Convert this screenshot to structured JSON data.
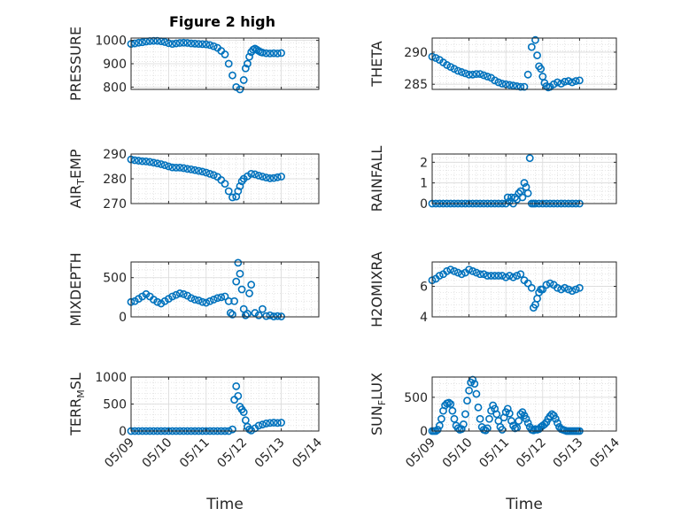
{
  "figure": {
    "title": "Figure 2 high"
  },
  "colors": {
    "marker": "#0072BD",
    "axis": "#262626",
    "grid": "#d9d9d9"
  },
  "chart_data": [
    {
      "type": "scatter",
      "ylabel": "PRESSURE",
      "xlabel": "",
      "ylim": [
        790,
        1010
      ],
      "yticks": [
        800,
        900,
        1000
      ],
      "xlim": [
        0,
        5
      ],
      "xticks": [],
      "grid": true,
      "x": [
        0.0,
        0.1,
        0.2,
        0.3,
        0.4,
        0.5,
        0.6,
        0.7,
        0.8,
        0.9,
        1.0,
        1.1,
        1.2,
        1.3,
        1.4,
        1.5,
        1.6,
        1.7,
        1.8,
        1.9,
        2.0,
        2.1,
        2.2,
        2.3,
        2.4,
        2.5,
        2.6,
        2.7,
        2.8,
        2.9,
        3.0,
        3.05,
        3.1,
        3.15,
        3.2,
        3.25,
        3.3,
        3.35,
        3.4,
        3.45,
        3.5,
        3.6,
        3.7,
        3.8,
        3.9,
        4.0
      ],
      "y": [
        985,
        987,
        990,
        992,
        995,
        997,
        998,
        998,
        996,
        993,
        988,
        985,
        987,
        989,
        990,
        989,
        987,
        986,
        985,
        984,
        983,
        980,
        975,
        968,
        955,
        940,
        900,
        850,
        800,
        790,
        830,
        880,
        900,
        930,
        950,
        960,
        965,
        960,
        955,
        950,
        948,
        945,
        944,
        945,
        944,
        946
      ]
    },
    {
      "type": "scatter",
      "ylabel": "THETA",
      "xlabel": "",
      "ylim": [
        284.2,
        292.2
      ],
      "yticks": [
        285,
        290
      ],
      "xlim": [
        0,
        5
      ],
      "xticks": [],
      "grid": true,
      "x": [
        0.0,
        0.1,
        0.2,
        0.3,
        0.4,
        0.5,
        0.6,
        0.7,
        0.8,
        0.9,
        1.0,
        1.1,
        1.2,
        1.3,
        1.4,
        1.5,
        1.6,
        1.7,
        1.8,
        1.9,
        2.0,
        2.1,
        2.2,
        2.3,
        2.4,
        2.5,
        2.6,
        2.7,
        2.8,
        2.85,
        2.9,
        2.95,
        3.0,
        3.05,
        3.1,
        3.15,
        3.2,
        3.3,
        3.4,
        3.5,
        3.6,
        3.7,
        3.8,
        3.9,
        4.0
      ],
      "y": [
        289.3,
        289.1,
        288.8,
        288.4,
        288.0,
        287.7,
        287.4,
        287.1,
        286.9,
        286.7,
        286.5,
        286.5,
        286.6,
        286.6,
        286.4,
        286.2,
        286.0,
        285.6,
        285.3,
        285.1,
        285.0,
        284.9,
        284.8,
        284.7,
        284.6,
        284.6,
        286.5,
        290.8,
        291.9,
        289.5,
        287.8,
        287.4,
        286.2,
        285.2,
        284.7,
        284.5,
        284.6,
        285.0,
        285.3,
        285.1,
        285.4,
        285.5,
        285.3,
        285.5,
        285.6
      ]
    },
    {
      "type": "scatter",
      "ylabel": "AIR_TEMP",
      "xlabel": "",
      "ylim": [
        270,
        290
      ],
      "yticks": [
        270,
        280,
        290
      ],
      "xlim": [
        0,
        5
      ],
      "xticks": [],
      "grid": true,
      "x": [
        0.0,
        0.1,
        0.2,
        0.3,
        0.4,
        0.5,
        0.6,
        0.7,
        0.8,
        0.9,
        1.0,
        1.1,
        1.2,
        1.3,
        1.4,
        1.5,
        1.6,
        1.7,
        1.8,
        1.9,
        2.0,
        2.1,
        2.2,
        2.3,
        2.4,
        2.5,
        2.6,
        2.7,
        2.8,
        2.85,
        2.9,
        2.95,
        3.0,
        3.1,
        3.2,
        3.3,
        3.4,
        3.5,
        3.6,
        3.7,
        3.8,
        3.9,
        4.0
      ],
      "y": [
        287.8,
        287.5,
        287.3,
        287.1,
        287.0,
        286.8,
        286.5,
        286.2,
        285.9,
        285.5,
        285.0,
        284.6,
        284.5,
        284.5,
        284.3,
        284.0,
        283.8,
        283.5,
        283.2,
        282.9,
        282.5,
        282.0,
        281.5,
        280.8,
        279.5,
        278.0,
        275.0,
        272.5,
        272.8,
        275.0,
        277.0,
        279.0,
        280.0,
        281.0,
        282.0,
        281.8,
        281.3,
        280.9,
        280.5,
        280.2,
        280.3,
        280.6,
        280.9
      ]
    },
    {
      "type": "scatter",
      "ylabel": "RAINFALL",
      "xlabel": "",
      "ylim": [
        0,
        2.4
      ],
      "yticks": [
        0,
        1,
        2
      ],
      "xlim": [
        0,
        5
      ],
      "xticks": [],
      "grid": true,
      "x": [
        0.0,
        0.1,
        0.2,
        0.3,
        0.4,
        0.5,
        0.6,
        0.7,
        0.8,
        0.9,
        1.0,
        1.1,
        1.2,
        1.3,
        1.4,
        1.5,
        1.6,
        1.7,
        1.8,
        1.9,
        2.0,
        2.05,
        2.1,
        2.15,
        2.2,
        2.25,
        2.3,
        2.35,
        2.4,
        2.45,
        2.5,
        2.55,
        2.6,
        2.65,
        2.7,
        2.75,
        2.8,
        2.9,
        3.0,
        3.1,
        3.2,
        3.3,
        3.4,
        3.5,
        3.6,
        3.7,
        3.8,
        3.9,
        4.0
      ],
      "y": [
        0,
        0,
        0,
        0,
        0,
        0,
        0,
        0,
        0,
        0,
        0,
        0,
        0,
        0,
        0,
        0,
        0,
        0,
        0,
        0,
        0,
        0.3,
        0.1,
        0.3,
        0,
        0.3,
        0.2,
        0.5,
        0.6,
        0.3,
        1.0,
        0.8,
        0.5,
        2.2,
        0,
        0,
        0,
        0,
        0,
        0,
        0,
        0,
        0,
        0,
        0,
        0,
        0,
        0,
        0
      ]
    },
    {
      "type": "scatter",
      "ylabel": "MIXDEPTH",
      "xlabel": "",
      "ylim": [
        0,
        700
      ],
      "yticks": [
        0,
        500
      ],
      "xlim": [
        0,
        5
      ],
      "xticks": [],
      "grid": true,
      "x": [
        0.0,
        0.1,
        0.2,
        0.3,
        0.4,
        0.5,
        0.6,
        0.7,
        0.8,
        0.9,
        1.0,
        1.1,
        1.2,
        1.3,
        1.4,
        1.5,
        1.6,
        1.7,
        1.8,
        1.9,
        2.0,
        2.1,
        2.2,
        2.3,
        2.4,
        2.5,
        2.6,
        2.65,
        2.7,
        2.75,
        2.8,
        2.85,
        2.9,
        2.95,
        3.0,
        3.05,
        3.1,
        3.15,
        3.2,
        3.3,
        3.4,
        3.5,
        3.6,
        3.7,
        3.8,
        3.9,
        4.0
      ],
      "y": [
        190,
        200,
        230,
        260,
        290,
        260,
        220,
        190,
        170,
        200,
        230,
        260,
        280,
        300,
        290,
        270,
        240,
        220,
        210,
        190,
        180,
        200,
        220,
        240,
        250,
        260,
        200,
        50,
        30,
        200,
        450,
        690,
        550,
        350,
        100,
        20,
        40,
        300,
        410,
        50,
        20,
        100,
        10,
        20,
        5,
        10,
        5
      ]
    },
    {
      "type": "scatter",
      "ylabel": "H2OMIXRA",
      "xlabel": "",
      "ylim": [
        4,
        7.6
      ],
      "yticks": [
        4,
        6
      ],
      "xlim": [
        0,
        5
      ],
      "xticks": [],
      "grid": true,
      "x": [
        0.0,
        0.1,
        0.2,
        0.3,
        0.4,
        0.5,
        0.6,
        0.7,
        0.8,
        0.9,
        1.0,
        1.1,
        1.2,
        1.3,
        1.4,
        1.5,
        1.6,
        1.7,
        1.8,
        1.9,
        2.0,
        2.1,
        2.2,
        2.3,
        2.4,
        2.5,
        2.6,
        2.7,
        2.75,
        2.8,
        2.85,
        2.9,
        2.95,
        3.0,
        3.1,
        3.2,
        3.3,
        3.4,
        3.5,
        3.6,
        3.7,
        3.8,
        3.9,
        4.0
      ],
      "y": [
        6.4,
        6.5,
        6.7,
        6.8,
        7.0,
        7.1,
        7.0,
        6.9,
        6.8,
        6.9,
        7.1,
        7.0,
        6.9,
        6.8,
        6.8,
        6.7,
        6.7,
        6.7,
        6.7,
        6.7,
        6.6,
        6.7,
        6.6,
        6.7,
        6.8,
        6.4,
        6.2,
        5.9,
        4.6,
        4.8,
        5.2,
        5.6,
        5.8,
        5.8,
        6.1,
        6.2,
        6.1,
        5.9,
        5.8,
        5.9,
        5.8,
        5.7,
        5.8,
        5.9
      ]
    },
    {
      "type": "scatter",
      "ylabel": "TERR_MSL",
      "xlabel": "Time",
      "ylim": [
        0,
        1000
      ],
      "yticks": [
        0,
        500,
        1000
      ],
      "xlim": [
        0,
        5
      ],
      "xticks": [
        "05/09",
        "05/10",
        "05/11",
        "05/12",
        "05/13",
        "05/14"
      ],
      "grid": true,
      "x": [
        0.0,
        0.1,
        0.2,
        0.3,
        0.4,
        0.5,
        0.6,
        0.7,
        0.8,
        0.9,
        1.0,
        1.1,
        1.2,
        1.3,
        1.4,
        1.5,
        1.6,
        1.7,
        1.8,
        1.9,
        2.0,
        2.1,
        2.2,
        2.3,
        2.4,
        2.5,
        2.6,
        2.7,
        2.75,
        2.8,
        2.85,
        2.9,
        2.95,
        3.0,
        3.05,
        3.1,
        3.15,
        3.2,
        3.3,
        3.4,
        3.5,
        3.6,
        3.7,
        3.8,
        3.9,
        4.0
      ],
      "y": [
        0,
        0,
        0,
        0,
        0,
        0,
        0,
        0,
        0,
        0,
        0,
        0,
        0,
        0,
        0,
        0,
        0,
        0,
        0,
        0,
        0,
        0,
        0,
        0,
        0,
        0,
        0,
        30,
        580,
        830,
        650,
        450,
        400,
        350,
        200,
        80,
        30,
        10,
        50,
        100,
        120,
        140,
        150,
        155,
        150,
        155
      ]
    },
    {
      "type": "scatter",
      "ylabel": "SUN_FLUX",
      "xlabel": "Time",
      "ylim": [
        0,
        800
      ],
      "yticks": [
        0,
        500
      ],
      "xlim": [
        0,
        5
      ],
      "xticks": [
        "05/09",
        "05/10",
        "05/11",
        "05/12",
        "05/13",
        "05/14"
      ],
      "grid": true,
      "x": [
        0.0,
        0.05,
        0.1,
        0.15,
        0.2,
        0.25,
        0.3,
        0.35,
        0.4,
        0.45,
        0.5,
        0.55,
        0.6,
        0.65,
        0.7,
        0.75,
        0.8,
        0.85,
        0.9,
        0.95,
        1.0,
        1.05,
        1.1,
        1.15,
        1.2,
        1.25,
        1.3,
        1.35,
        1.4,
        1.45,
        1.5,
        1.55,
        1.6,
        1.65,
        1.7,
        1.75,
        1.8,
        1.85,
        1.9,
        1.95,
        2.0,
        2.05,
        2.1,
        2.15,
        2.2,
        2.25,
        2.3,
        2.35,
        2.4,
        2.45,
        2.5,
        2.55,
        2.6,
        2.65,
        2.7,
        2.75,
        2.8,
        2.85,
        2.9,
        2.95,
        3.0,
        3.05,
        3.1,
        3.15,
        3.2,
        3.25,
        3.3,
        3.35,
        3.4,
        3.45,
        3.5,
        3.55,
        3.6,
        3.65,
        3.7,
        3.75,
        3.8,
        3.85,
        3.9,
        3.95,
        4.0
      ],
      "y": [
        0,
        0,
        0,
        20,
        80,
        180,
        300,
        380,
        410,
        420,
        400,
        300,
        180,
        80,
        40,
        20,
        30,
        100,
        250,
        450,
        600,
        720,
        760,
        700,
        550,
        350,
        180,
        60,
        20,
        10,
        40,
        180,
        300,
        380,
        330,
        250,
        150,
        60,
        20,
        200,
        280,
        330,
        260,
        150,
        80,
        40,
        50,
        150,
        250,
        280,
        230,
        180,
        120,
        60,
        20,
        10,
        30,
        20,
        30,
        60,
        80,
        100,
        130,
        180,
        220,
        250,
        230,
        180,
        120,
        60,
        30,
        20,
        10,
        0,
        0,
        0,
        0,
        0,
        0,
        0,
        0
      ]
    }
  ]
}
